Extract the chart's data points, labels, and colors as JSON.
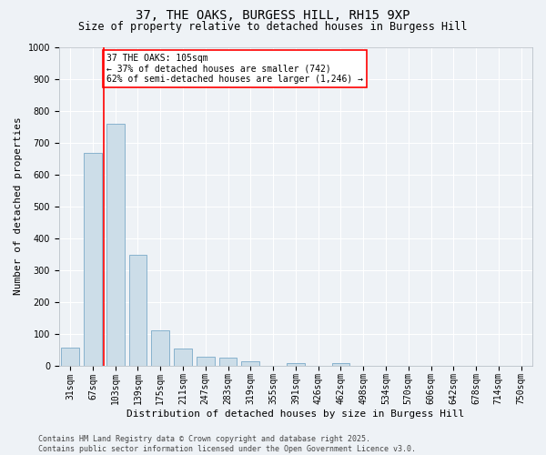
{
  "title1": "37, THE OAKS, BURGESS HILL, RH15 9XP",
  "title2": "Size of property relative to detached houses in Burgess Hill",
  "xlabel": "Distribution of detached houses by size in Burgess Hill",
  "ylabel": "Number of detached properties",
  "bar_color": "#ccdde8",
  "bar_edge_color": "#7aaac8",
  "vline_color": "red",
  "vline_x_index": 2,
  "categories": [
    "31sqm",
    "67sqm",
    "103sqm",
    "139sqm",
    "175sqm",
    "211sqm",
    "247sqm",
    "283sqm",
    "319sqm",
    "355sqm",
    "391sqm",
    "426sqm",
    "462sqm",
    "498sqm",
    "534sqm",
    "570sqm",
    "606sqm",
    "642sqm",
    "678sqm",
    "714sqm",
    "750sqm"
  ],
  "values": [
    55,
    668,
    760,
    347,
    110,
    52,
    28,
    25,
    14,
    0,
    8,
    0,
    8,
    0,
    0,
    0,
    0,
    0,
    0,
    0,
    0
  ],
  "ylim": [
    0,
    1000
  ],
  "yticks": [
    0,
    100,
    200,
    300,
    400,
    500,
    600,
    700,
    800,
    900,
    1000
  ],
  "annotation_line1": "37 THE OAKS: 105sqm",
  "annotation_line2": "← 37% of detached houses are smaller (742)",
  "annotation_line3": "62% of semi-detached houses are larger (1,246) →",
  "annotation_box_color": "white",
  "annotation_box_edge_color": "red",
  "footer1": "Contains HM Land Registry data © Crown copyright and database right 2025.",
  "footer2": "Contains public sector information licensed under the Open Government Licence v3.0.",
  "bg_color": "#eef2f6",
  "grid_color": "white",
  "title1_fontsize": 10,
  "title2_fontsize": 8.5,
  "ylabel_fontsize": 8,
  "xlabel_fontsize": 8,
  "tick_fontsize": 7,
  "annotation_fontsize": 7,
  "footer_fontsize": 6
}
